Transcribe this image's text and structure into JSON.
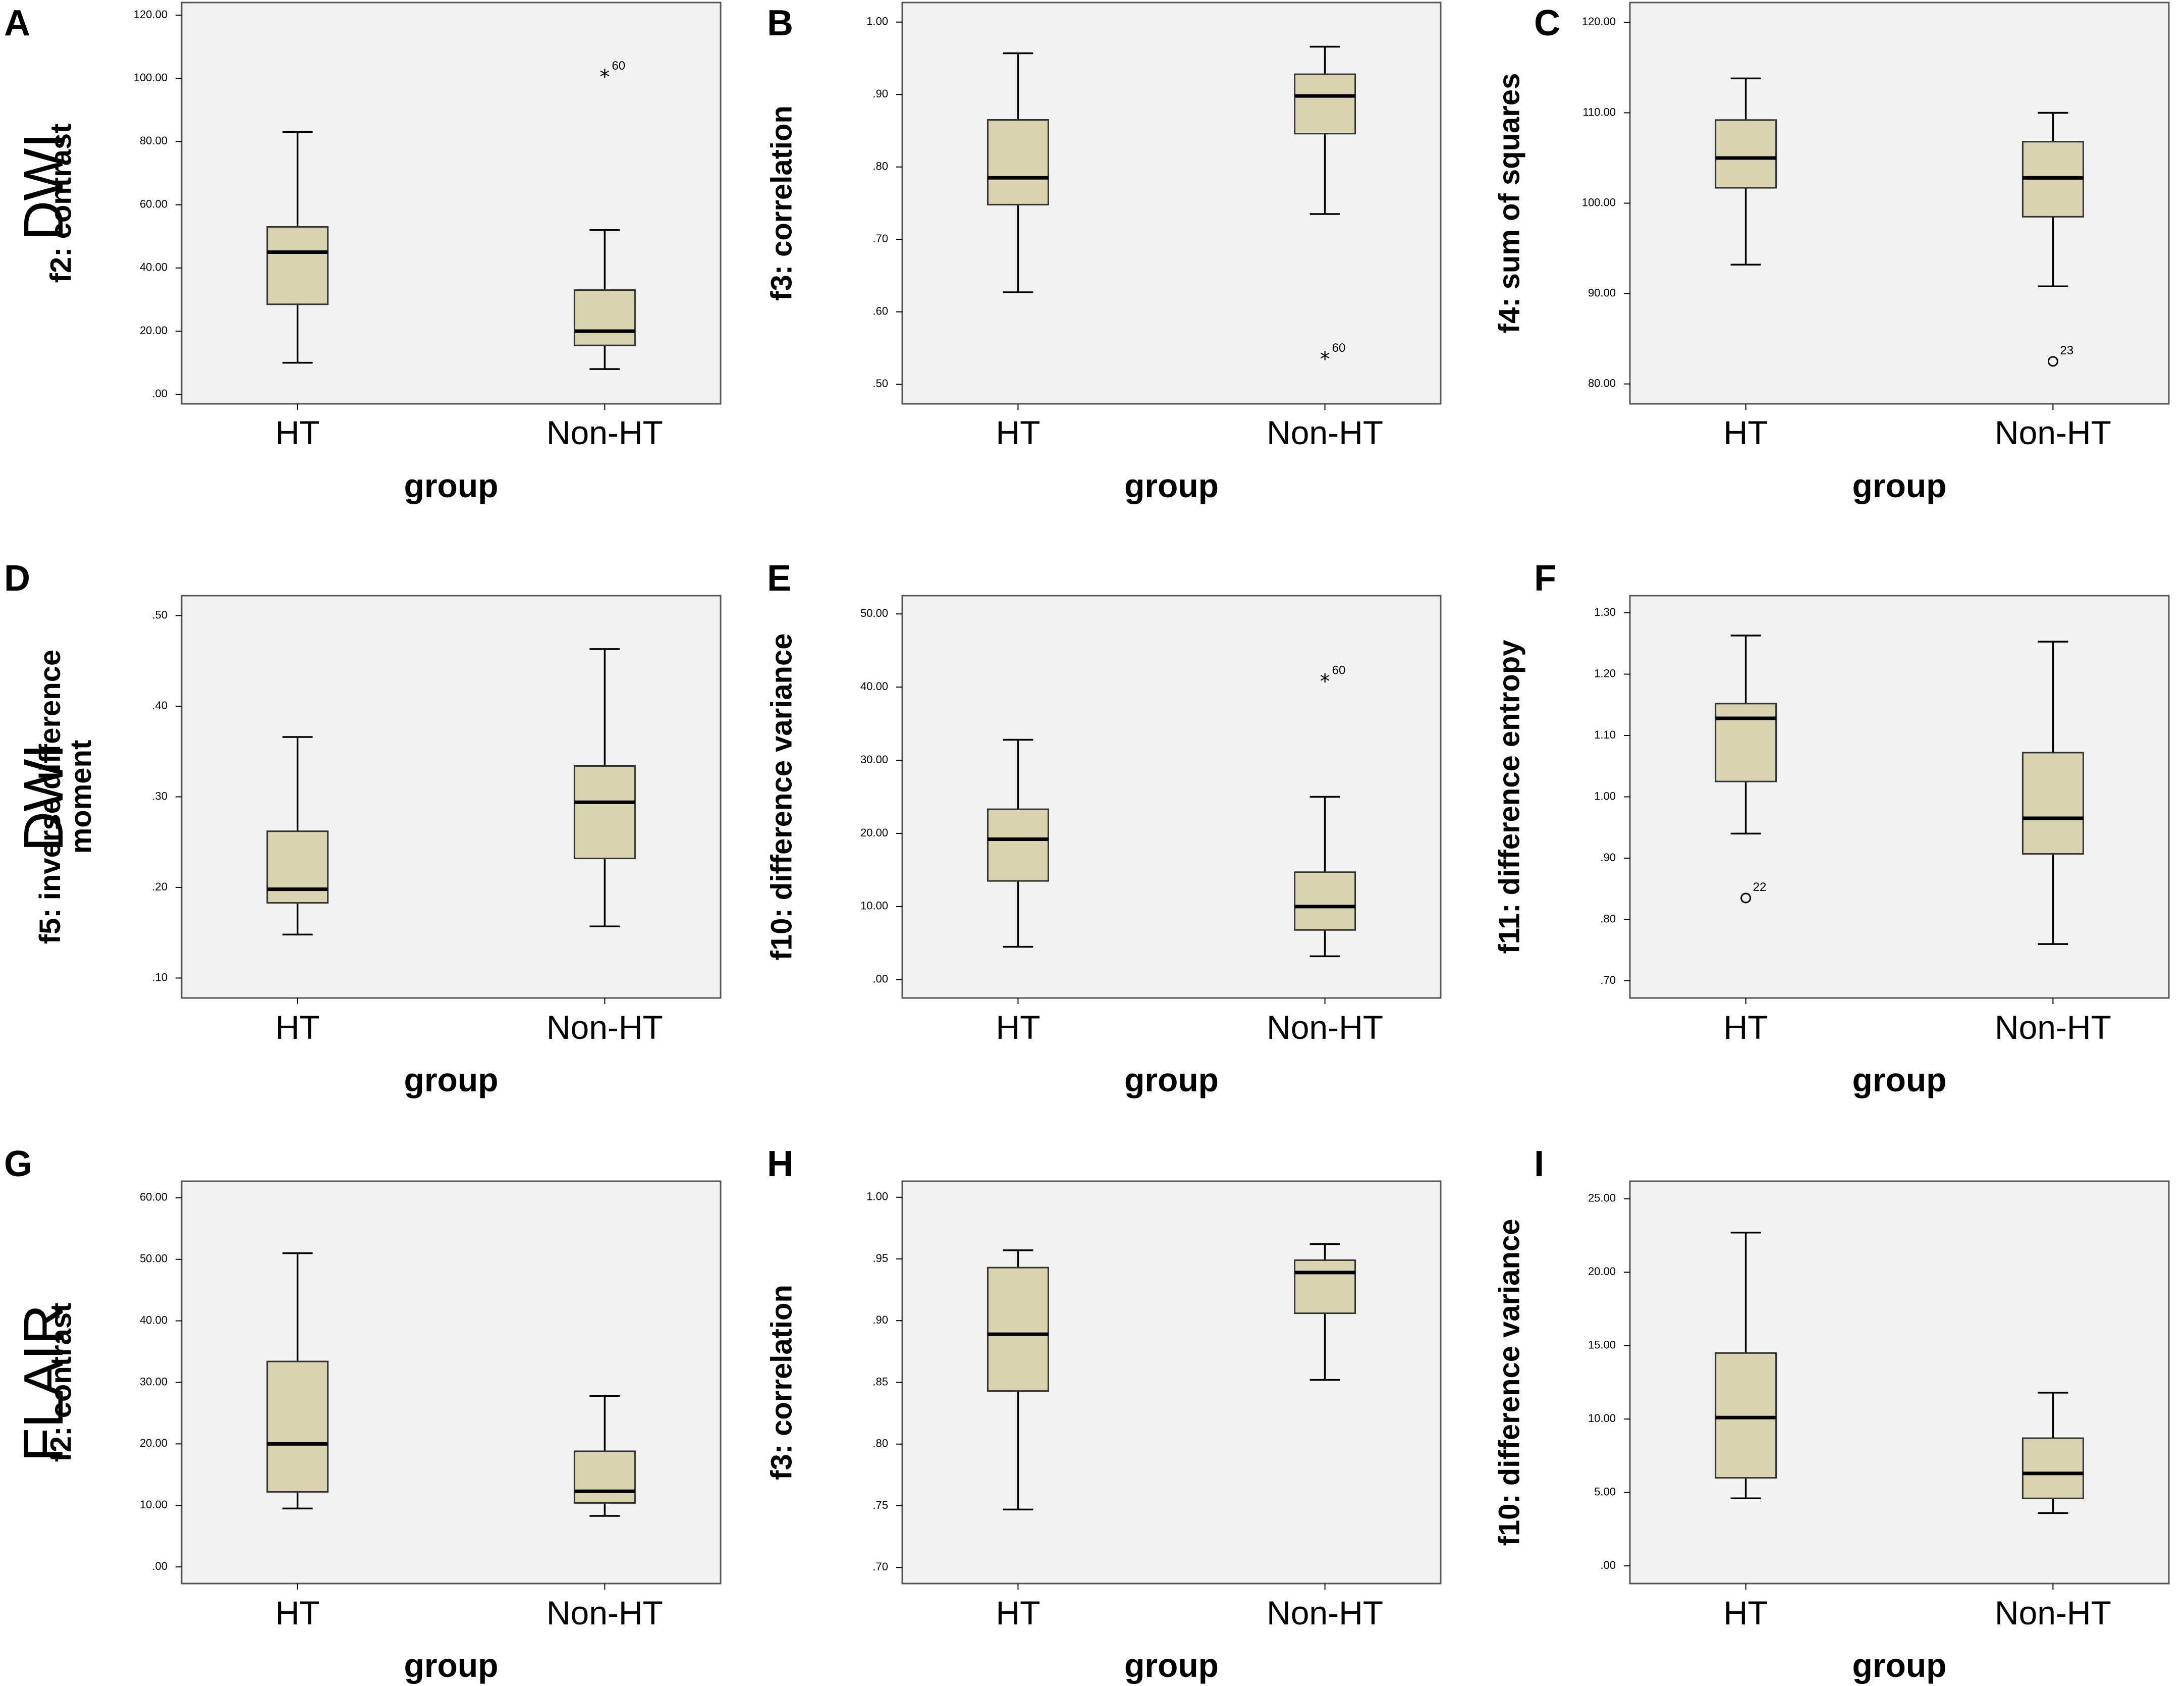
{
  "colors": {
    "box_fill": "#d8d4b0",
    "plot_bg": "#f2f2f2",
    "frame": "#555555"
  },
  "row_labels": [
    "DWI",
    "DWI",
    "FLAIR"
  ],
  "chart_data": [
    {
      "panel": "A",
      "type": "box",
      "ylabel": "f2: contrast",
      "xlabel": "group",
      "categories": [
        "HT",
        "Non-HT"
      ],
      "yticks": [
        0,
        20,
        40,
        60,
        80,
        100,
        120
      ],
      "ytick_labels": [
        ".00",
        "20.00",
        "40.00",
        "60.00",
        "80.00",
        "100.00",
        "120.00"
      ],
      "ylim": [
        -3,
        124
      ],
      "boxes": [
        {
          "min": 10,
          "q1": 28.5,
          "median": 45,
          "q3": 53,
          "max": 83
        },
        {
          "min": 8,
          "q1": 15.5,
          "median": 20,
          "q3": 33,
          "max": 52
        }
      ],
      "outliers": [
        {
          "group": 1,
          "value": 100.5,
          "label": "60",
          "marker": "star"
        }
      ]
    },
    {
      "panel": "B",
      "type": "box",
      "ylabel": "f3: correlation",
      "xlabel": "group",
      "categories": [
        "HT",
        "Non-HT"
      ],
      "yticks": [
        0.5,
        0.6,
        0.7,
        0.8,
        0.9,
        1.0
      ],
      "ytick_labels": [
        ".50",
        ".60",
        ".70",
        ".80",
        ".90",
        "1.00"
      ],
      "ylim": [
        0.473,
        1.027
      ],
      "boxes": [
        {
          "min": 0.627,
          "q1": 0.748,
          "median": 0.785,
          "q3": 0.865,
          "max": 0.957
        },
        {
          "min": 0.735,
          "q1": 0.846,
          "median": 0.898,
          "q3": 0.928,
          "max": 0.966
        }
      ],
      "outliers": [
        {
          "group": 1,
          "value": 0.535,
          "label": "60",
          "marker": "star"
        }
      ]
    },
    {
      "panel": "C",
      "type": "box",
      "ylabel": "f4: sum of squares",
      "xlabel": "group",
      "categories": [
        "HT",
        "Non-HT"
      ],
      "yticks": [
        80,
        90,
        100,
        110,
        120
      ],
      "ytick_labels": [
        "80.00",
        "90.00",
        "100.00",
        "110.00",
        "120.00"
      ],
      "ylim": [
        77.8,
        122.2
      ],
      "boxes": [
        {
          "min": 93.2,
          "q1": 101.7,
          "median": 105,
          "q3": 109.2,
          "max": 113.8
        },
        {
          "min": 90.8,
          "q1": 98.5,
          "median": 102.8,
          "q3": 106.8,
          "max": 110
        }
      ],
      "outliers": [
        {
          "group": 1,
          "value": 82.5,
          "label": "23",
          "marker": "circle"
        }
      ]
    },
    {
      "panel": "D",
      "type": "box",
      "ylabel": "f5: inverse difference moment",
      "xlabel": "group",
      "categories": [
        "HT",
        "Non-HT"
      ],
      "yticks": [
        0.1,
        0.2,
        0.3,
        0.4,
        0.5
      ],
      "ytick_labels": [
        ".10",
        ".20",
        ".30",
        ".40",
        ".50"
      ],
      "ylim": [
        0.078,
        0.522
      ],
      "boxes": [
        {
          "min": 0.148,
          "q1": 0.183,
          "median": 0.198,
          "q3": 0.262,
          "max": 0.366
        },
        {
          "min": 0.157,
          "q1": 0.232,
          "median": 0.294,
          "q3": 0.334,
          "max": 0.463
        }
      ],
      "outliers": []
    },
    {
      "panel": "E",
      "type": "box",
      "ylabel": "f10: difference variance",
      "xlabel": "group",
      "categories": [
        "HT",
        "Non-HT"
      ],
      "yticks": [
        0,
        10,
        20,
        30,
        40,
        50
      ],
      "ytick_labels": [
        ".00",
        "10.00",
        "20.00",
        "30.00",
        "40.00",
        "50.00"
      ],
      "ylim": [
        -2.5,
        52.5
      ],
      "boxes": [
        {
          "min": 4.5,
          "q1": 13.5,
          "median": 19.2,
          "q3": 23.3,
          "max": 32.8
        },
        {
          "min": 3.2,
          "q1": 6.8,
          "median": 10,
          "q3": 14.7,
          "max": 25
        }
      ],
      "outliers": [
        {
          "group": 1,
          "value": 40.8,
          "label": "60",
          "marker": "star"
        }
      ]
    },
    {
      "panel": "F",
      "type": "box",
      "ylabel": "f11: difference entropy",
      "xlabel": "group",
      "categories": [
        "HT",
        "Non-HT"
      ],
      "yticks": [
        0.7,
        0.8,
        0.9,
        1.0,
        1.1,
        1.2,
        1.3
      ],
      "ytick_labels": [
        ".70",
        ".80",
        ".90",
        "1.00",
        "1.10",
        "1.20",
        "1.30"
      ],
      "ylim": [
        0.672,
        1.328
      ],
      "boxes": [
        {
          "min": 0.94,
          "q1": 1.025,
          "median": 1.128,
          "q3": 1.152,
          "max": 1.263
        },
        {
          "min": 0.76,
          "q1": 0.907,
          "median": 0.965,
          "q3": 1.072,
          "max": 1.253
        }
      ],
      "outliers": [
        {
          "group": 0,
          "value": 0.835,
          "label": "22",
          "marker": "circle"
        }
      ]
    },
    {
      "panel": "G",
      "type": "box",
      "ylabel": "f2: contrast",
      "xlabel": "group",
      "categories": [
        "HT",
        "Non-HT"
      ],
      "yticks": [
        0,
        10,
        20,
        30,
        40,
        50,
        60
      ],
      "ytick_labels": [
        ".00",
        "10.00",
        "20.00",
        "30.00",
        "40.00",
        "50.00",
        "60.00"
      ],
      "ylim": [
        -2.7,
        62.7
      ],
      "boxes": [
        {
          "min": 9.5,
          "q1": 12.2,
          "median": 20,
          "q3": 33.4,
          "max": 51
        },
        {
          "min": 8.3,
          "q1": 10.4,
          "median": 12.3,
          "q3": 18.8,
          "max": 27.8
        }
      ],
      "outliers": []
    },
    {
      "panel": "H",
      "type": "box",
      "ylabel": "f3: correlation",
      "xlabel": "group",
      "categories": [
        "HT",
        "Non-HT"
      ],
      "yticks": [
        0.7,
        0.75,
        0.8,
        0.85,
        0.9,
        0.95,
        1.0
      ],
      "ytick_labels": [
        ".70",
        ".75",
        ".80",
        ".85",
        ".90",
        ".95",
        "1.00"
      ],
      "ylim": [
        0.687,
        1.013
      ],
      "boxes": [
        {
          "min": 0.747,
          "q1": 0.843,
          "median": 0.889,
          "q3": 0.943,
          "max": 0.957
        },
        {
          "min": 0.852,
          "q1": 0.906,
          "median": 0.939,
          "q3": 0.949,
          "max": 0.962
        }
      ],
      "outliers": []
    },
    {
      "panel": "I",
      "type": "box",
      "ylabel": "f10: difference variance",
      "xlabel": "group",
      "categories": [
        "HT",
        "Non-HT"
      ],
      "yticks": [
        0,
        5,
        10,
        15,
        20,
        25
      ],
      "ytick_labels": [
        ".00",
        "5.00",
        "10.00",
        "15.00",
        "20.00",
        "25.00"
      ],
      "ylim": [
        -1.2,
        26.2
      ],
      "boxes": [
        {
          "min": 4.6,
          "q1": 6,
          "median": 10.1,
          "q3": 14.5,
          "max": 22.7
        },
        {
          "min": 3.6,
          "q1": 4.6,
          "median": 6.3,
          "q3": 8.7,
          "max": 11.8
        }
      ],
      "outliers": []
    }
  ]
}
